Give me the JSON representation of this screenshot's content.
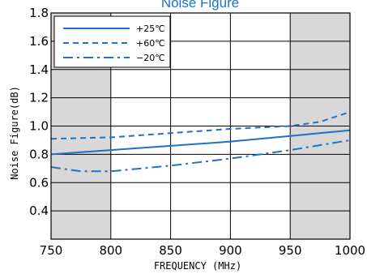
{
  "chart_data": {
    "type": "line",
    "title": "Noise Figure",
    "xlabel": "FREQUENCY (MHz)",
    "ylabel": "Noise Figure(dB)",
    "xlim": [
      750,
      1000
    ],
    "ylim": [
      0.2,
      1.8
    ],
    "x_ticks": [
      "750",
      "800",
      "850",
      "900",
      "950",
      "1000"
    ],
    "y_ticks": [
      "0.4",
      "0.6",
      "0.8",
      "1.0",
      "1.2",
      "1.4",
      "1.6",
      "1.8"
    ],
    "grid": true,
    "shaded_x_ranges": [
      [
        750,
        800
      ],
      [
        950,
        1000
      ]
    ],
    "legend_position": "top-left",
    "colors": {
      "line": "#1a73c7",
      "shade": "#d8d8d8",
      "grid": "#000000"
    },
    "series": [
      {
        "name": "+25℃",
        "style": "solid",
        "x": [
          750,
          800,
          850,
          900,
          950,
          1000
        ],
        "y": [
          0.8,
          0.83,
          0.86,
          0.89,
          0.93,
          0.97
        ]
      },
      {
        "name": "+60℃",
        "style": "dashed",
        "x": [
          750,
          800,
          850,
          900,
          950,
          975,
          1000
        ],
        "y": [
          0.91,
          0.92,
          0.95,
          0.98,
          1.0,
          1.03,
          1.1
        ]
      },
      {
        "name": "−20℃",
        "style": "dashdot",
        "x": [
          750,
          775,
          800,
          850,
          900,
          950,
          1000
        ],
        "y": [
          0.71,
          0.68,
          0.68,
          0.72,
          0.77,
          0.83,
          0.9
        ]
      }
    ]
  }
}
